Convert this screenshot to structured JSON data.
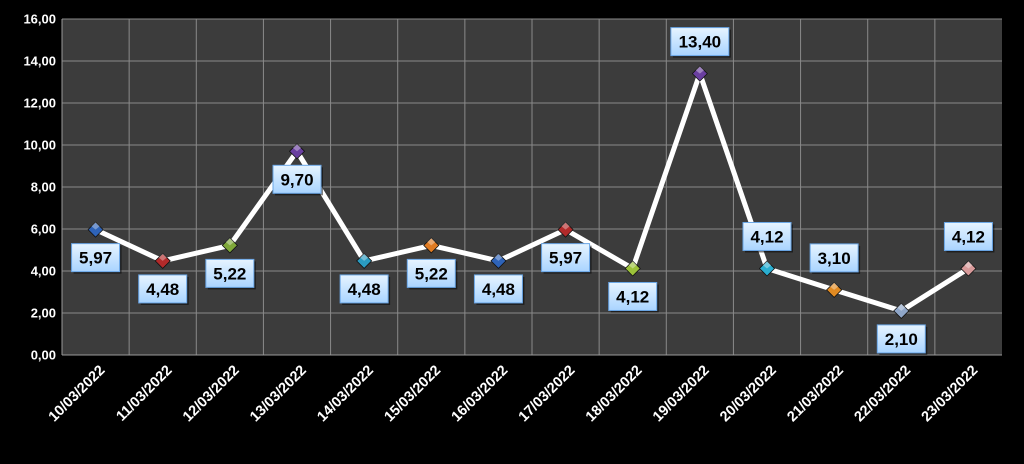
{
  "chart_data": {
    "type": "line",
    "title": "",
    "xlabel": "",
    "ylabel": "",
    "ylim": [
      0,
      16
    ],
    "yticks": [
      "0,00",
      "2,00",
      "4,00",
      "6,00",
      "8,00",
      "10,00",
      "12,00",
      "14,00",
      "16,00"
    ],
    "grid": true,
    "legend": "none",
    "categories": [
      "10/03/2022",
      "11/03/2022",
      "12/03/2022",
      "13/03/2022",
      "14/03/2022",
      "15/03/2022",
      "16/03/2022",
      "17/03/2022",
      "18/03/2022",
      "19/03/2022",
      "20/03/2022",
      "21/03/2022",
      "22/03/2022",
      "23/03/2022"
    ],
    "series": [
      {
        "values": [
          5.97,
          4.48,
          5.22,
          9.7,
          4.48,
          5.22,
          4.48,
          5.97,
          4.12,
          13.4,
          4.12,
          3.1,
          2.1,
          4.12
        ],
        "data_labels": [
          "5,97",
          "4,48",
          "5,22",
          "9,70",
          "4,48",
          "5,22",
          "4,48",
          "5,97",
          "4,12",
          "13,40",
          "4,12",
          "3,10",
          "2,10",
          "4,12"
        ],
        "line_color": "#ffffff",
        "marker_colors": [
          "#2e63b8",
          "#b22a2a",
          "#7fa83a",
          "#6a3fa0",
          "#2a9bc0",
          "#e07b22",
          "#2e63b8",
          "#b22a2a",
          "#9cc23a",
          "#6a3fa0",
          "#2aaed0",
          "#e08a22",
          "#8fa6c8",
          "#d89a9a"
        ]
      }
    ],
    "colors": {
      "background": "#000000",
      "plot_area": "#3c3c3c",
      "gridline": "#8a8a8a",
      "label_box_fill": "#cde8ff",
      "label_box_border": "#6aa6e6"
    }
  }
}
